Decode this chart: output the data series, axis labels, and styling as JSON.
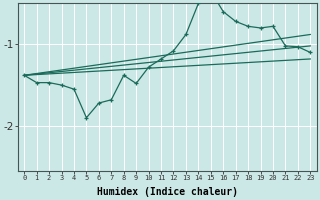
{
  "xlabel": "Humidex (Indice chaleur)",
  "bg_color": "#cce8e6",
  "grid_color": "#ffffff",
  "line_color": "#1a6b5a",
  "x_ticks": [
    0,
    1,
    2,
    3,
    4,
    5,
    6,
    7,
    8,
    9,
    10,
    11,
    12,
    13,
    14,
    15,
    16,
    17,
    18,
    19,
    20,
    21,
    22,
    23
  ],
  "y_ticks": [
    -2,
    -1
  ],
  "ylim": [
    -2.55,
    -0.5
  ],
  "xlim": [
    -0.5,
    23.5
  ],
  "main_line_x": [
    0,
    1,
    2,
    3,
    4,
    5,
    6,
    7,
    8,
    9,
    10,
    11,
    12,
    13,
    14,
    15,
    16,
    17,
    18,
    19,
    20,
    21,
    22,
    23
  ],
  "main_line_y": [
    -1.38,
    -1.47,
    -1.47,
    -1.5,
    -1.55,
    -1.9,
    -1.72,
    -1.68,
    -1.38,
    -1.48,
    -1.28,
    -1.18,
    -1.08,
    -0.88,
    -0.5,
    -0.35,
    -0.6,
    -0.72,
    -0.78,
    -0.8,
    -0.78,
    -1.02,
    -1.03,
    -1.1
  ],
  "ref_line1_x": [
    0,
    23
  ],
  "ref_line1_y": [
    -1.38,
    -0.88
  ],
  "ref_line2_x": [
    0,
    23
  ],
  "ref_line2_y": [
    -1.38,
    -1.02
  ],
  "ref_line3_x": [
    0,
    23
  ],
  "ref_line3_y": [
    -1.38,
    -1.18
  ]
}
